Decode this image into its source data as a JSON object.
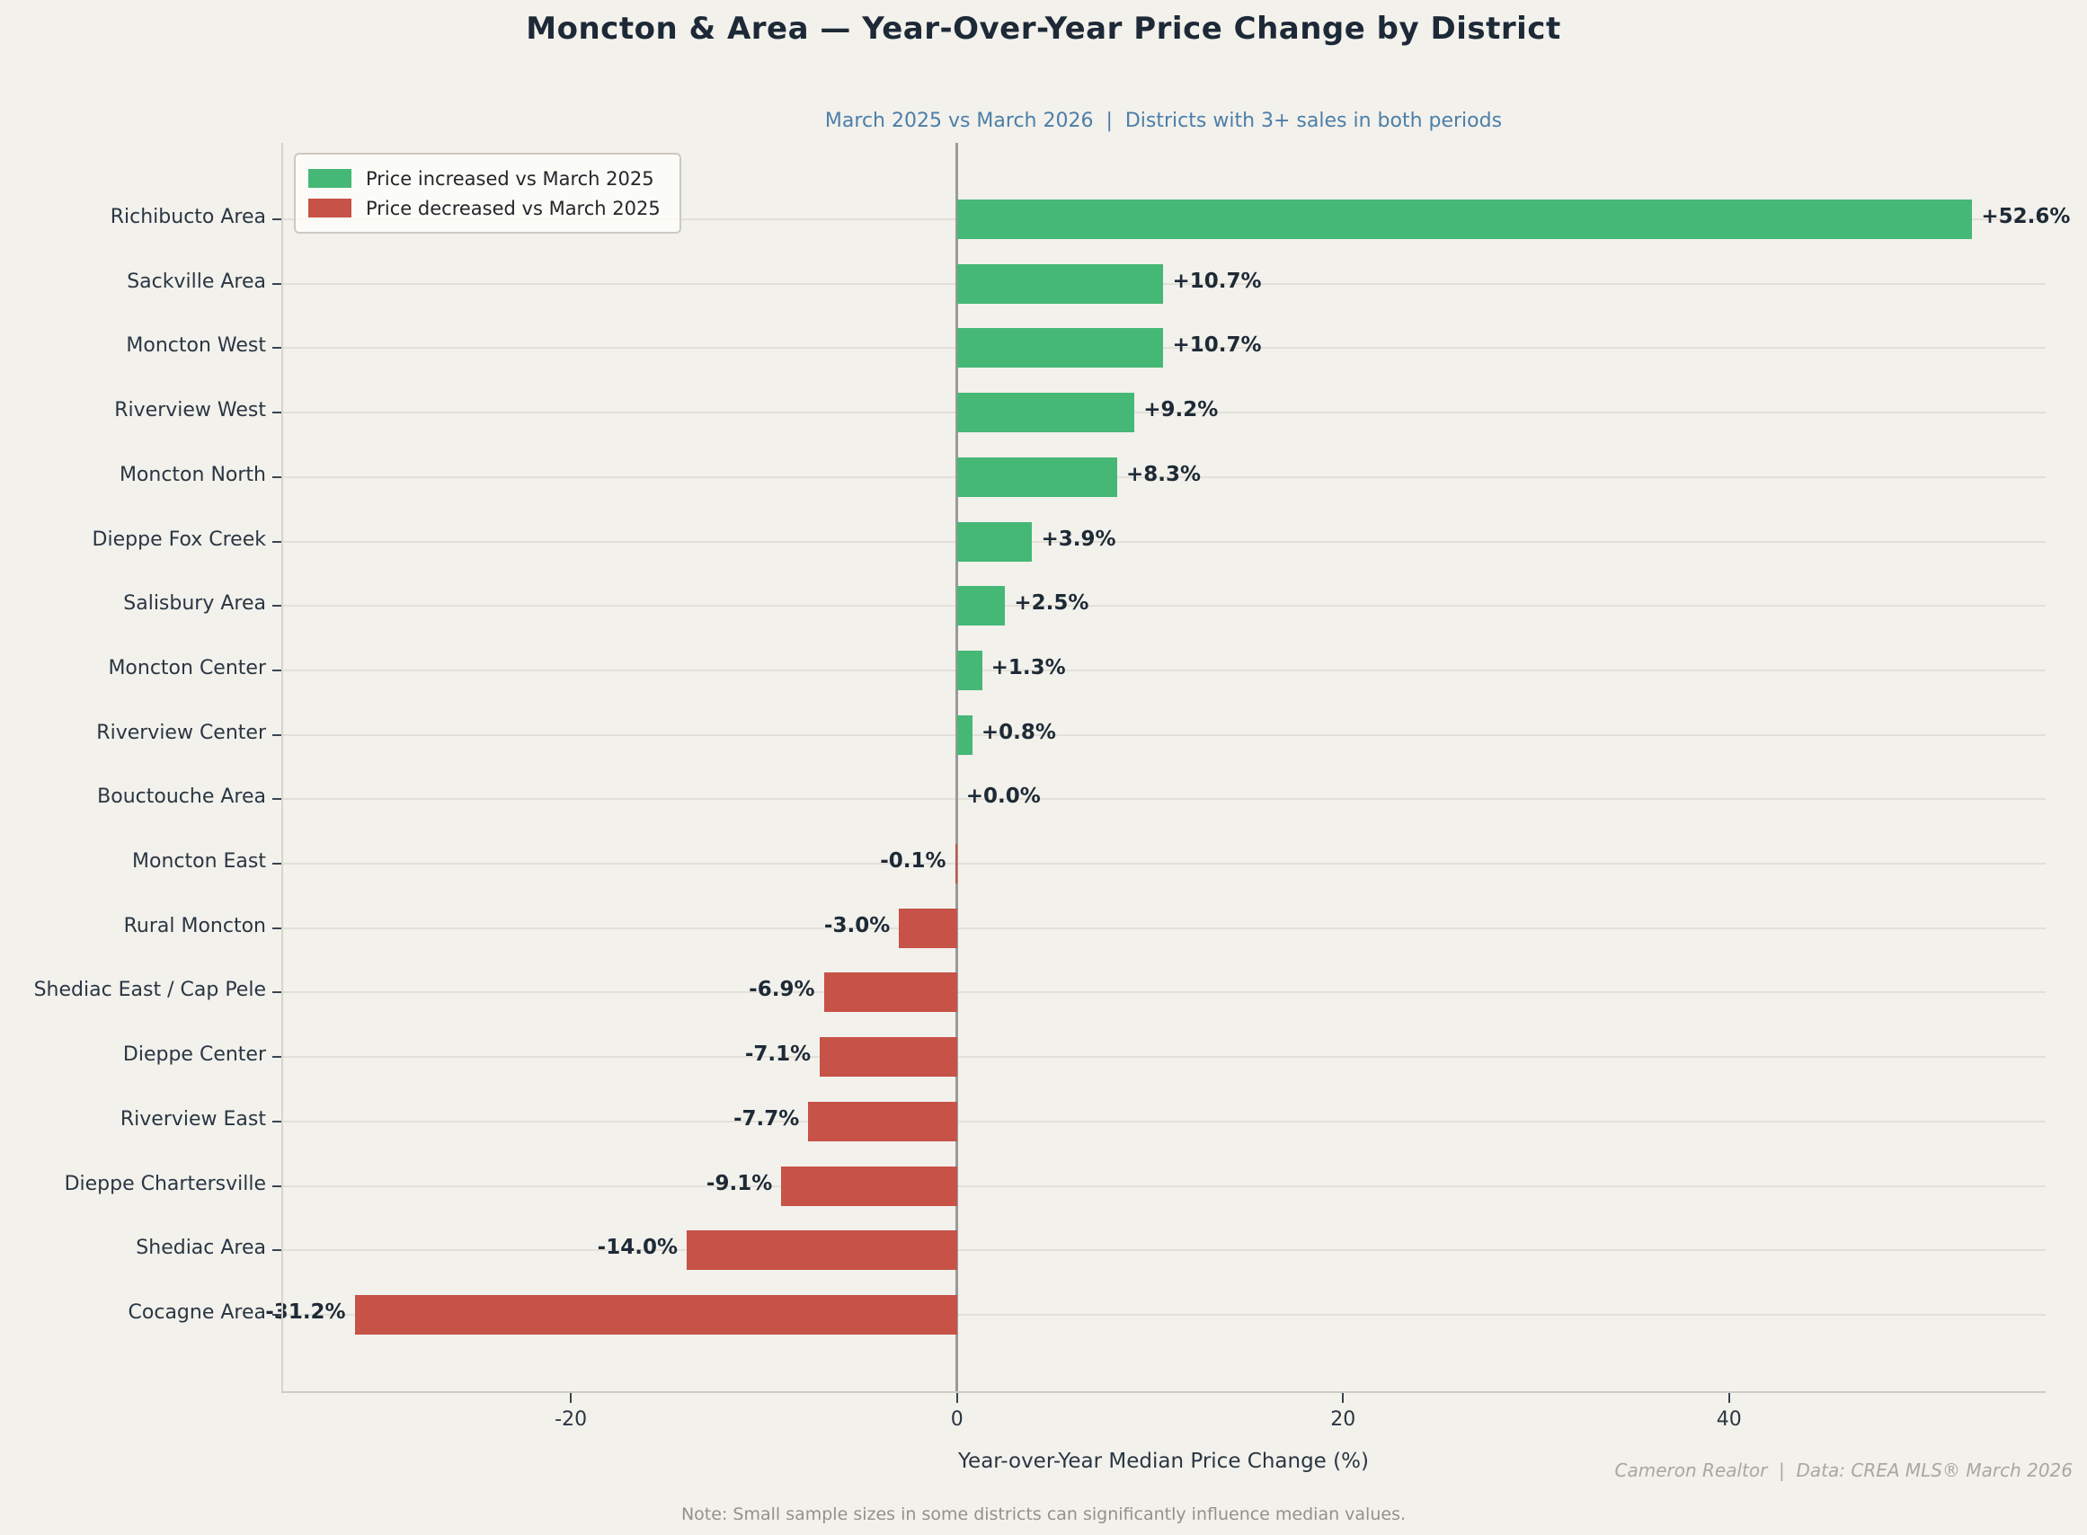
{
  "header": {
    "title": "Moncton & Area — Year-Over-Year Price Change by District",
    "subtitle": "March 2025 vs March 2026  |  Districts with 3+ sales in both periods"
  },
  "legend": {
    "items": [
      {
        "label": "Price increased vs March 2025",
        "color": "#45b876"
      },
      {
        "label": "Price decreased vs March 2025",
        "color": "#c75247"
      }
    ]
  },
  "chart_data": {
    "type": "bar",
    "orientation": "horizontal",
    "title": "Moncton & Area — Year-Over-Year Price Change by District",
    "subtitle": "March 2025 vs March 2026  |  Districts with 3+ sales in both periods",
    "categories": [
      "Richibucto Area",
      "Sackville Area",
      "Moncton West",
      "Riverview West",
      "Moncton North",
      "Dieppe Fox Creek",
      "Salisbury Area",
      "Moncton Center",
      "Riverview Center",
      "Bouctouche Area",
      "Moncton East",
      "Rural Moncton",
      "Shediac East / Cap Pele",
      "Dieppe Center",
      "Riverview East",
      "Dieppe Chartersville",
      "Shediac Area",
      "Cocagne Area"
    ],
    "values": [
      52.6,
      10.7,
      10.7,
      9.2,
      8.3,
      3.9,
      2.5,
      1.3,
      0.8,
      0.0,
      -0.1,
      -3.0,
      -6.9,
      -7.1,
      -7.7,
      -9.1,
      -14.0,
      -31.2
    ],
    "bar_labels": [
      "+52.6%",
      "+10.7%",
      "+10.7%",
      "+9.2%",
      "+8.3%",
      "+3.9%",
      "+2.5%",
      "+1.3%",
      "+0.8%",
      "+0.0%",
      "-0.1%",
      "-3.0%",
      "-6.9%",
      "-7.1%",
      "-7.7%",
      "-9.1%",
      "-14.0%",
      "-31.2%"
    ],
    "xlabel": "Year-over-Year Median Price Change (%)",
    "ylabel": "",
    "xlim": [
      -35,
      56.4
    ],
    "xticks": [
      -20,
      0,
      20,
      40
    ],
    "grid": "horizontal",
    "legend_position": "upper left",
    "colors": {
      "positive": "#45b876",
      "negative": "#c75247",
      "background": "#f2f1ec"
    }
  },
  "footer": {
    "credit": "Cameron Realtor  |  Data: CREA MLS® March 2026",
    "note": "Note: Small sample sizes in some districts can significantly influence median values."
  }
}
